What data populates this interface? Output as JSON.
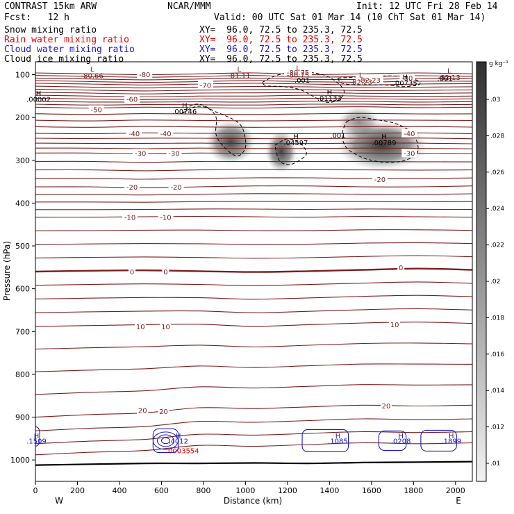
{
  "header": {
    "model": "CONTRAST 15km ARW",
    "org": "NCAR/MMM",
    "init": "Init: 12 UTC Fri 28 Feb 14",
    "fcst": "Fcst:   12 h",
    "valid": "Valid: 00 UTC Sat 01 Mar 14 (10 ChT Sat 01 Mar 14)",
    "fields": [
      {
        "label": "Snow mixing ratio",
        "xy": "XY=  96.0, 72.5 to 235.3, 72.5",
        "color": "#000000"
      },
      {
        "label": "Rain water mixing ratio",
        "xy": "XY=  96.0, 72.5 to 235.3, 72.5",
        "color": "#e00000"
      },
      {
        "label": "Cloud water mixing ratio",
        "xy": "XY=  96.0, 72.5 to 235.3, 72.5",
        "color": "#1818c8"
      },
      {
        "label": "Cloud ice mixing ratio",
        "xy": "XY=  96.0, 72.5 to 235.3, 72.5",
        "color": "#000000"
      }
    ]
  },
  "chart_data": {
    "type": "contour",
    "xlabel": "Distance (km)",
    "ylabel": "Pressure (hPa)",
    "xlim": [
      0,
      2080
    ],
    "ylim": [
      1050,
      70
    ],
    "x_ticks": [
      0,
      200,
      400,
      600,
      800,
      1000,
      1200,
      1400,
      1600,
      1800,
      2000
    ],
    "y_ticks": [
      100,
      200,
      300,
      400,
      500,
      600,
      700,
      800,
      900,
      1000
    ],
    "x_end_labels": {
      "left": "W",
      "right": "E"
    },
    "colorbar": {
      "unit": "g kg⁻¹",
      "ticks": [
        ".01",
        ".012",
        ".014",
        ".016",
        ".018",
        ".02",
        ".022",
        ".024",
        ".026",
        ".028",
        ".03"
      ]
    },
    "temperature_contours": [
      {
        "level": -80,
        "p": [
          96,
          98,
          100,
          98,
          96,
          100,
          98,
          96,
          98
        ]
      },
      {
        "level": -70,
        "p": [
          120,
          122,
          124,
          122,
          120,
          122,
          124,
          122,
          121
        ]
      },
      {
        "level": -60,
        "p": [
          148,
          150,
          152,
          150,
          150,
          148,
          150,
          151,
          150
        ]
      },
      {
        "level": -50,
        "p": [
          176,
          178,
          176,
          177,
          178,
          176,
          175,
          177,
          176
        ]
      },
      {
        "level": -40,
        "p": [
          237,
          238,
          236,
          237,
          238,
          238,
          237,
          236,
          238
        ]
      },
      {
        "level": -30,
        "p": [
          283,
          283,
          285,
          283,
          284,
          284,
          283,
          284,
          285
        ]
      },
      {
        "level": -20,
        "p": [
          362,
          362,
          364,
          362,
          360,
          360,
          362,
          362,
          360
        ]
      },
      {
        "level": -10,
        "p": [
          433,
          433,
          432,
          431,
          432,
          433,
          431,
          432,
          433
        ]
      },
      {
        "level": 0,
        "p": [
          560,
          558,
          557,
          559,
          561,
          559,
          556,
          553,
          556
        ]
      },
      {
        "level": 10,
        "p": [
          688,
          686,
          684,
          683,
          688,
          684,
          680,
          678,
          681
        ]
      },
      {
        "level": 20,
        "p": [
          900,
          894,
          890,
          878,
          880,
          876,
          872,
          874,
          872
        ]
      }
    ],
    "contour_x": [
      0,
      260,
      520,
      780,
      1040,
      1300,
      1560,
      1820,
      2080
    ],
    "contour_labels": [
      {
        "text": "-80",
        "x": 520,
        "p": 99
      },
      {
        "text": "-70",
        "x": 810,
        "p": 124
      },
      {
        "text": "-60",
        "x": 460,
        "p": 157
      },
      {
        "text": "-50",
        "x": 290,
        "p": 181
      },
      {
        "text": "-40",
        "x": 470,
        "p": 237
      },
      {
        "text": "-40",
        "x": 620,
        "p": 237
      },
      {
        "text": "-40",
        "x": 1780,
        "p": 237
      },
      {
        "text": "-30",
        "x": 500,
        "p": 283
      },
      {
        "text": "-30",
        "x": 660,
        "p": 283
      },
      {
        "text": "-30",
        "x": 1780,
        "p": 283
      },
      {
        "text": "-20",
        "x": 460,
        "p": 362
      },
      {
        "text": "-20",
        "x": 670,
        "p": 362
      },
      {
        "text": "-20",
        "x": 1640,
        "p": 344
      },
      {
        "text": "-10",
        "x": 450,
        "p": 433
      },
      {
        "text": "-10",
        "x": 620,
        "p": 433
      },
      {
        "text": "0",
        "x": 460,
        "p": 560
      },
      {
        "text": "0",
        "x": 620,
        "p": 560
      },
      {
        "text": "0",
        "x": 1740,
        "p": 550
      },
      {
        "text": "10",
        "x": 500,
        "p": 688
      },
      {
        "text": "10",
        "x": 620,
        "p": 688
      },
      {
        "text": "10",
        "x": 1710,
        "p": 683
      },
      {
        "text": "20",
        "x": 510,
        "p": 884
      },
      {
        "text": "20",
        "x": 610,
        "p": 886
      },
      {
        "text": "20",
        "x": 1670,
        "p": 873
      },
      {
        "text": "-82.23",
        "x": 1590,
        "p": 112
      },
      {
        "text": "-80",
        "x": 1770,
        "p": 107
      },
      {
        "text": "-80.75",
        "x": 1250,
        "p": 94
      }
    ],
    "minima": [
      {
        "label": "L",
        "value": "-80.66",
        "x": 270,
        "p": 86
      },
      {
        "label": "L",
        "value": "-81.11",
        "x": 970,
        "p": 86
      },
      {
        "label": "L",
        "value": "-80.75",
        "x": 1250,
        "p": 84
      },
      {
        "label": "L",
        "value": "-82.23",
        "x": 1550,
        "p": 100
      },
      {
        "label": "L",
        "value": "-82.13",
        "x": 1970,
        "p": 90
      }
    ],
    "ice_maxima": [
      {
        "label": "H",
        "value": ".00002",
        "x": 15,
        "p": 157
      },
      {
        "label": "H",
        "value": ".00746",
        "x": 710,
        "p": 185
      },
      {
        "label": "H",
        "value": ".01133",
        "x": 1400,
        "p": 154
      },
      {
        "label": "H",
        "value": ".04597",
        "x": 1240,
        "p": 258
      },
      {
        "label": "H",
        "value": ".00789",
        "x": 1660,
        "p": 258
      },
      {
        "label": "H",
        "value": ".00735",
        "x": 1760,
        "p": 119
      },
      {
        "label": "",
        "value": ".001",
        "x": 1270,
        "p": 112
      },
      {
        "label": "",
        "value": ".001",
        "x": 1440,
        "p": 241
      },
      {
        "label": "",
        "value": ".001",
        "x": 1950,
        "p": 108
      }
    ],
    "cloud_water_maxima": [
      {
        "label": "H",
        "value": ".1509",
        "x": 5,
        "p": 955
      },
      {
        "label": "H",
        "value": ".4012",
        "x": 680,
        "p": 955
      },
      {
        "label": "H",
        "value": ".1085",
        "x": 1440,
        "p": 955
      },
      {
        "label": "H",
        "value": ".0208",
        "x": 1740,
        "p": 955
      },
      {
        "label": "H",
        "value": ".1899",
        "x": 1980,
        "p": 955
      }
    ],
    "rain_maxima": [
      {
        "label": "",
        "value": ".0003554",
        "x": 700,
        "p": 978
      }
    ],
    "snow_patches": [
      {
        "x": 930,
        "p": 258,
        "w": 60,
        "h": 26,
        "v": 0.03
      },
      {
        "x": 1170,
        "p": 280,
        "w": 34,
        "h": 24,
        "v": 0.031
      },
      {
        "x": 1650,
        "p": 265,
        "w": 120,
        "h": 30,
        "v": 0.032
      },
      {
        "x": 1540,
        "p": 212,
        "w": 50,
        "h": 18,
        "v": 0.018
      }
    ],
    "surface_p": [
      1012,
      1010,
      1008,
      1008,
      1007,
      1008,
      1006,
      1005,
      1004
    ]
  }
}
